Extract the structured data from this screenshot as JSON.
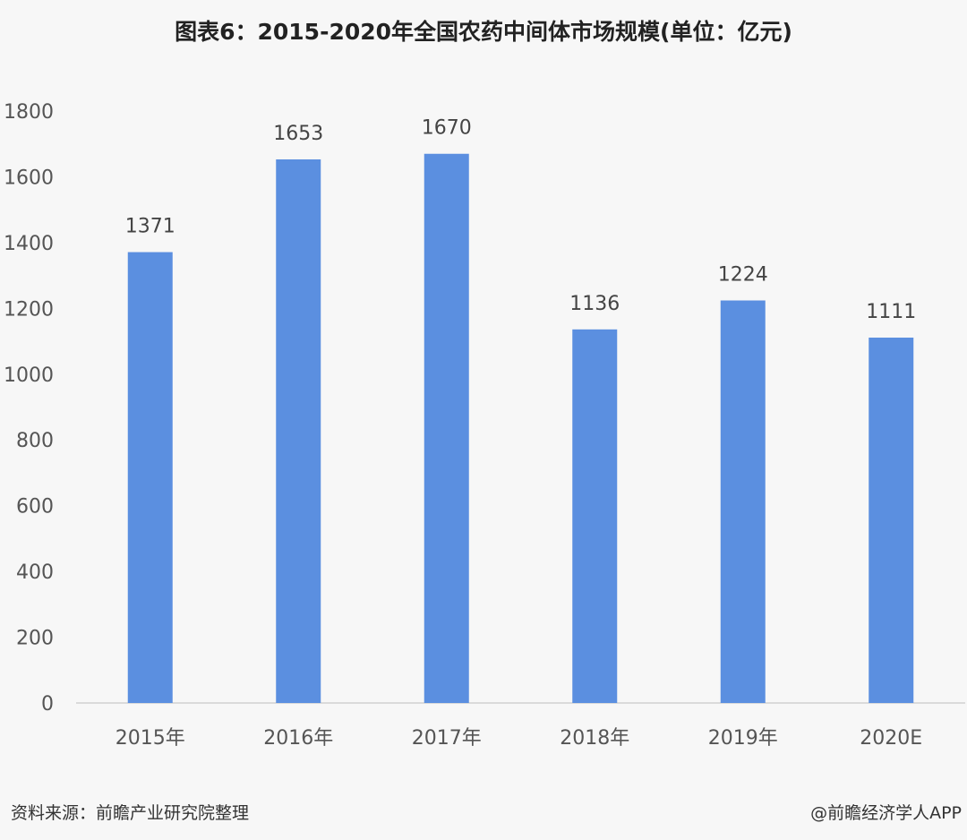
{
  "chart_data": {
    "type": "bar",
    "title": "图表6：2015-2020年全国农药中间体市场规模(单位：亿元)",
    "categories": [
      "2015年",
      "2016年",
      "2017年",
      "2018年",
      "2019年",
      "2020E"
    ],
    "values": [
      1371,
      1653,
      1670,
      1136,
      1224,
      1111
    ],
    "data_labels": [
      "1371",
      "1653",
      "1670",
      "1136",
      "1224",
      "1111"
    ],
    "xlabel": "",
    "ylabel": "",
    "ylim": [
      0,
      1800
    ],
    "yticks": [
      0,
      200,
      400,
      600,
      800,
      1000,
      1200,
      1400,
      1600,
      1800
    ],
    "grid": false,
    "legend": "none",
    "bar_color": "#5b8fe0"
  },
  "footer": {
    "source": "资料来源：前瞻产业研究院整理",
    "credit": "@前瞻经济学人APP"
  }
}
